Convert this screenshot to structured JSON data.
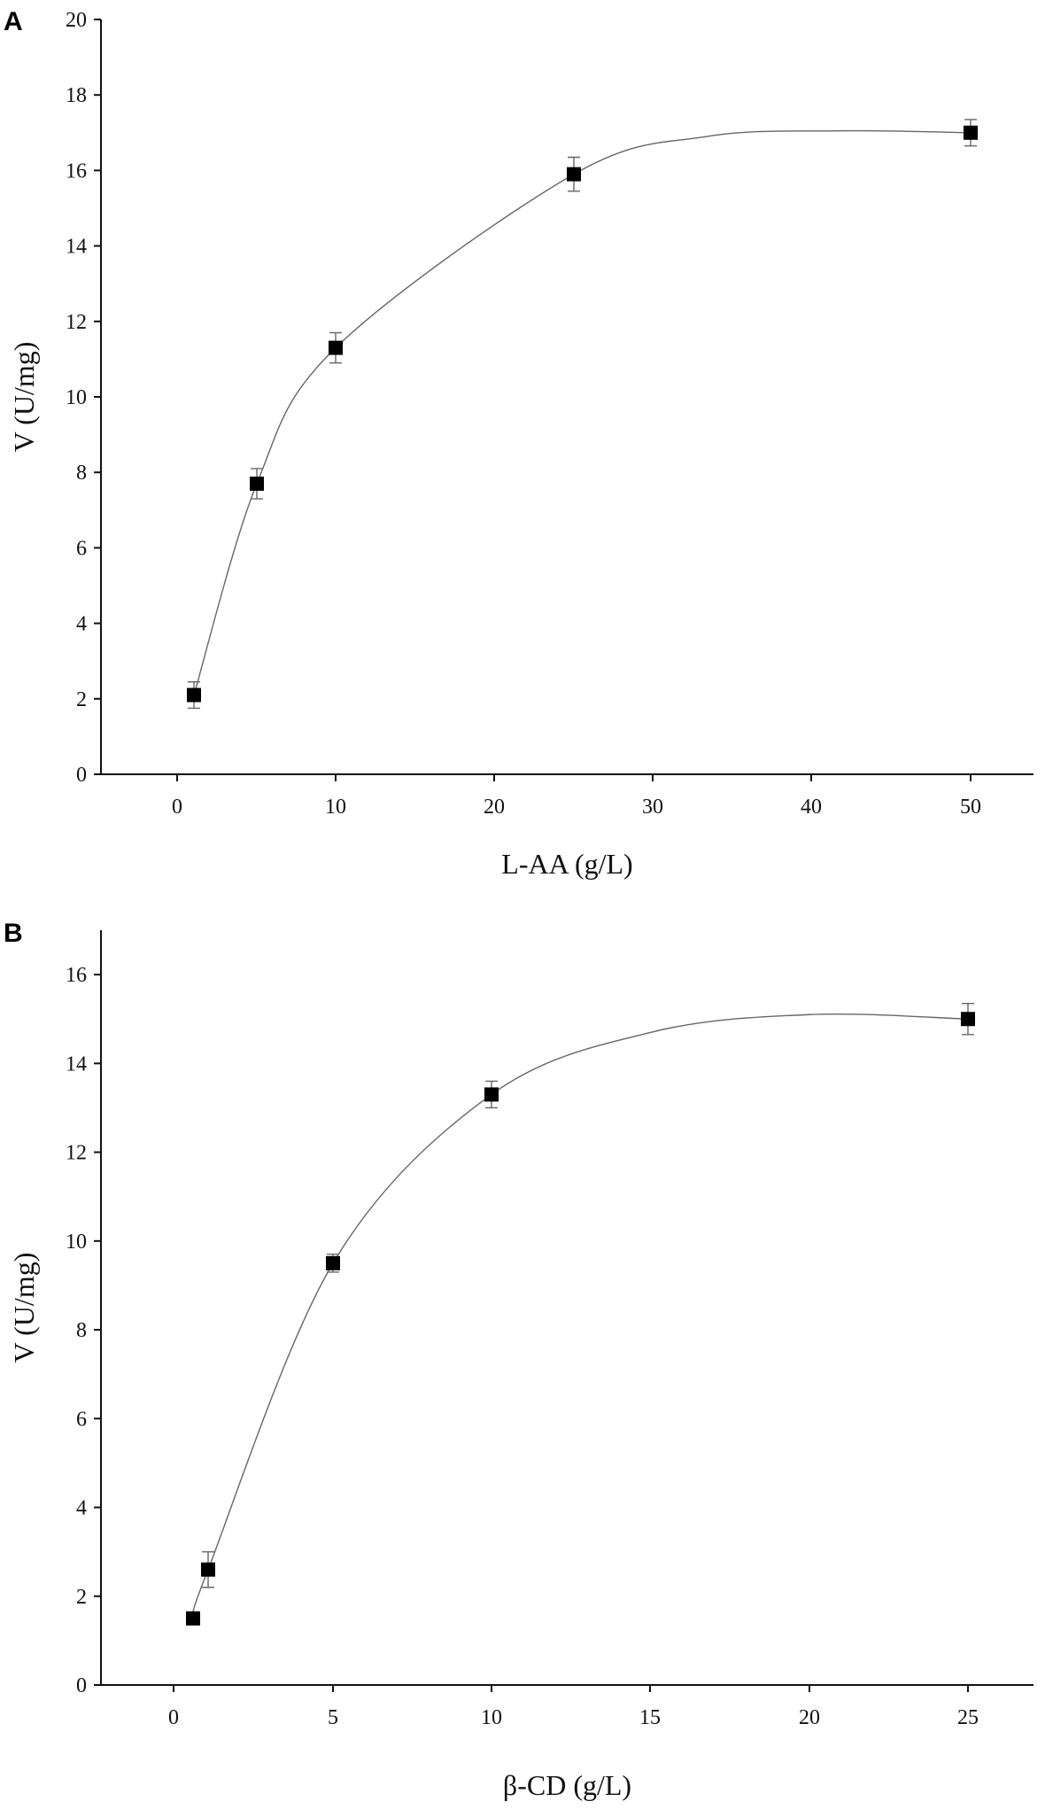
{
  "chart_data": [
    {
      "panel": "A",
      "type": "scatter",
      "xlabel": "L-AA (g/L)",
      "ylabel": "V (U/mg)",
      "x_tick_labels": [
        "0",
        "10",
        "20",
        "30",
        "40",
        "50"
      ],
      "y_ticks": [
        0,
        2,
        4,
        6,
        8,
        10,
        12,
        14,
        16,
        18,
        20
      ],
      "ylim": [
        0,
        20
      ],
      "points": [
        {
          "x": "1",
          "y": 2.1,
          "err": 0.35
        },
        {
          "x": "5",
          "y": 7.7,
          "err": 0.4
        },
        {
          "x": "10",
          "y": 11.3,
          "err": 0.4
        },
        {
          "x": "25",
          "y": 15.9,
          "err": 0.45
        },
        {
          "x": "50",
          "y": 17.0,
          "err": 0.35
        }
      ],
      "fit_curve": true,
      "grid": false,
      "legend": false
    },
    {
      "panel": "B",
      "type": "scatter",
      "xlabel": "β-CD (g/L)",
      "ylabel": "V (U/mg)",
      "x_tick_labels": [
        "0",
        "5",
        "10",
        "15",
        "20",
        "25"
      ],
      "y_ticks": [
        0,
        2,
        4,
        6,
        8,
        10,
        12,
        14,
        16
      ],
      "ylim": [
        0,
        17
      ],
      "points": [
        {
          "x": "0.5",
          "y": 1.5,
          "err": 0.0
        },
        {
          "x": "1",
          "y": 2.6,
          "err": 0.4
        },
        {
          "x": "5",
          "y": 9.5,
          "err": 0.2
        },
        {
          "x": "10",
          "y": 13.3,
          "err": 0.3
        },
        {
          "x": "25",
          "y": 15.0,
          "err": 0.35
        }
      ],
      "fit_curve": true,
      "grid": false,
      "legend": false
    }
  ]
}
